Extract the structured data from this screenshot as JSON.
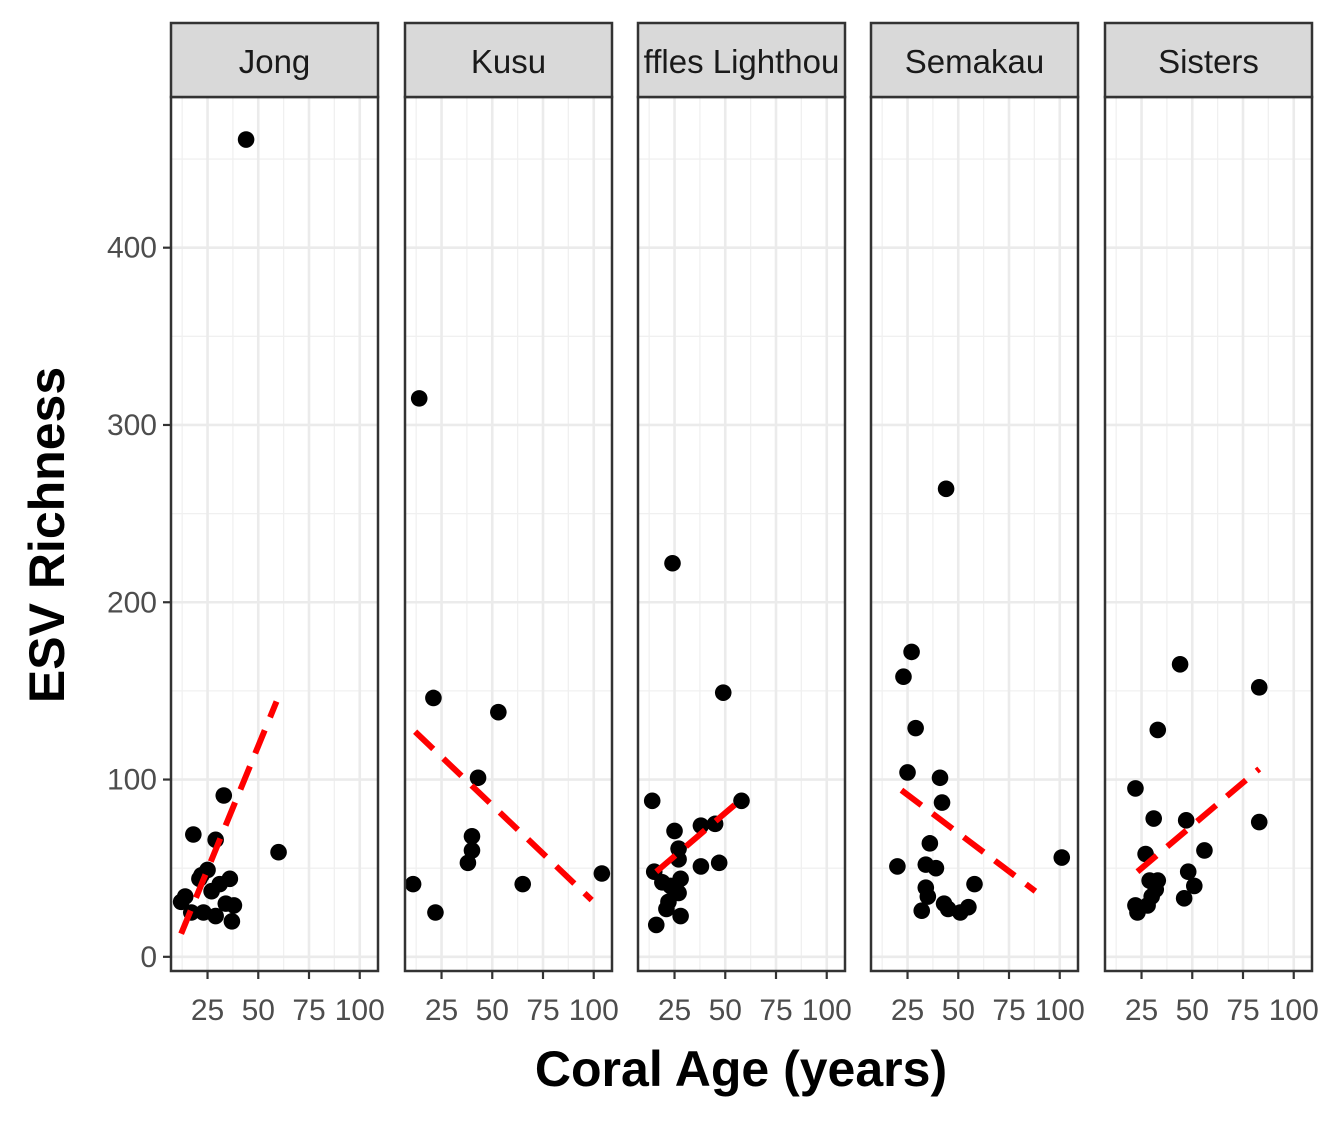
{
  "chart_data": {
    "type": "scatter",
    "xlabel": "Coral Age (years)",
    "ylabel": "ESV Richness",
    "xlim": [
      7,
      109
    ],
    "ylim": [
      -8,
      485
    ],
    "x_ticks": [
      25,
      50,
      75,
      100
    ],
    "x_tick_labels": [
      "25",
      "50",
      "75",
      "100"
    ],
    "y_ticks": [
      0,
      100,
      200,
      300,
      400
    ],
    "y_tick_labels": [
      "0",
      "100",
      "200",
      "300",
      "400"
    ],
    "grid": true,
    "point_color": "#000000",
    "trend_color": "#ff0000",
    "panels": [
      {
        "name": "Jong",
        "points": [
          [
            12,
            31
          ],
          [
            14,
            34
          ],
          [
            17,
            25
          ],
          [
            18,
            69
          ],
          [
            21,
            44
          ],
          [
            22,
            46
          ],
          [
            23,
            25
          ],
          [
            25,
            49
          ],
          [
            27,
            37
          ],
          [
            29,
            66
          ],
          [
            29,
            23
          ],
          [
            31,
            41
          ],
          [
            33,
            91
          ],
          [
            34,
            30
          ],
          [
            36,
            44
          ],
          [
            37,
            20
          ],
          [
            38,
            29
          ],
          [
            44,
            461
          ],
          [
            60,
            59
          ]
        ],
        "trend": [
          [
            12,
            13
          ],
          [
            59,
            144
          ]
        ]
      },
      {
        "name": "Kusu",
        "points": [
          [
            11,
            41
          ],
          [
            14,
            315
          ],
          [
            21,
            146
          ],
          [
            22,
            25
          ],
          [
            38,
            53
          ],
          [
            40,
            60
          ],
          [
            40,
            68
          ],
          [
            43,
            101
          ],
          [
            53,
            138
          ],
          [
            65,
            41
          ],
          [
            104,
            47
          ]
        ],
        "trend": [
          [
            12,
            127
          ],
          [
            99,
            32
          ]
        ]
      },
      {
        "name": "Raffles Lighthouse",
        "strip_visible": "ffles Lighthou",
        "points": [
          [
            14,
            88
          ],
          [
            15,
            48
          ],
          [
            16,
            18
          ],
          [
            19,
            42
          ],
          [
            21,
            27
          ],
          [
            22,
            31
          ],
          [
            23,
            40
          ],
          [
            24,
            222
          ],
          [
            25,
            71
          ],
          [
            27,
            61
          ],
          [
            27,
            55
          ],
          [
            27,
            36
          ],
          [
            28,
            44
          ],
          [
            28,
            23
          ],
          [
            38,
            74
          ],
          [
            38,
            51
          ],
          [
            45,
            75
          ],
          [
            47,
            53
          ],
          [
            49,
            149
          ],
          [
            58,
            88
          ]
        ],
        "trend": [
          [
            16,
            48
          ],
          [
            57,
            88
          ]
        ]
      },
      {
        "name": "Semakau",
        "points": [
          [
            20,
            51
          ],
          [
            23,
            158
          ],
          [
            25,
            104
          ],
          [
            27,
            172
          ],
          [
            29,
            129
          ],
          [
            32,
            26
          ],
          [
            34,
            52
          ],
          [
            34,
            39
          ],
          [
            35,
            34
          ],
          [
            36,
            64
          ],
          [
            39,
            50
          ],
          [
            41,
            101
          ],
          [
            42,
            87
          ],
          [
            43,
            30
          ],
          [
            44,
            264
          ],
          [
            45,
            27
          ],
          [
            51,
            25
          ],
          [
            55,
            28
          ],
          [
            58,
            41
          ],
          [
            101,
            56
          ]
        ],
        "trend": [
          [
            22,
            94
          ],
          [
            88,
            37
          ]
        ]
      },
      {
        "name": "Sisters",
        "points": [
          [
            22,
            95
          ],
          [
            22,
            29
          ],
          [
            23,
            25
          ],
          [
            27,
            58
          ],
          [
            28,
            29
          ],
          [
            29,
            43
          ],
          [
            30,
            34
          ],
          [
            31,
            78
          ],
          [
            32,
            38
          ],
          [
            33,
            128
          ],
          [
            33,
            43
          ],
          [
            44,
            165
          ],
          [
            46,
            33
          ],
          [
            47,
            77
          ],
          [
            48,
            48
          ],
          [
            51,
            40
          ],
          [
            56,
            60
          ],
          [
            83,
            152
          ],
          [
            83,
            76
          ]
        ],
        "trend": [
          [
            23,
            48
          ],
          [
            83,
            106
          ]
        ]
      }
    ]
  }
}
